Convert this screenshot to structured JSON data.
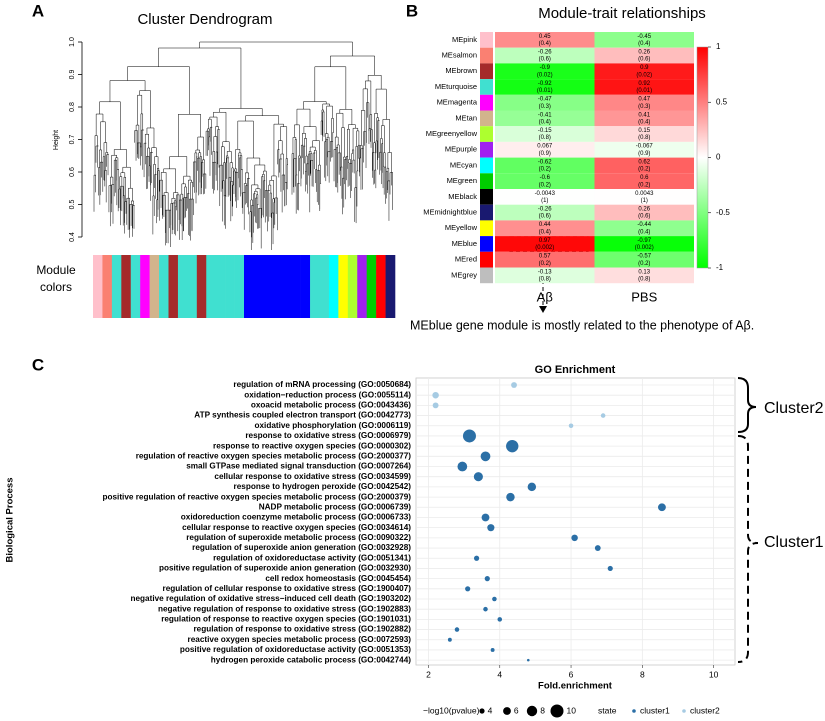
{
  "chart_data": [
    {
      "panel": "A",
      "type": "dendrogram",
      "title": "Cluster Dendrogram",
      "ylabel": "Height",
      "ylim": [
        0.4,
        1.0
      ],
      "yticks": [
        {
          "value": 1,
          "label": "1.0"
        },
        0.9,
        0.8,
        0.7,
        0.6,
        0.5,
        0.4
      ],
      "module_label": "Module colors",
      "module_colors": [
        "#ffc0cb",
        "#fa8072",
        "#40e0d0",
        "#a52a2a",
        "#40e0d0",
        "#ff00ff",
        "#d2b48c",
        "#40e0d0",
        "#a52a2a",
        "#40e0d0",
        "#40e0d0",
        "#a52a2a",
        "#40e0d0",
        "#40e0d0",
        "#40e0d0",
        "#40e0d0",
        "#0000ff",
        "#0000ff",
        "#0000ff",
        "#0000ff",
        "#0000ff",
        "#0000ff",
        "#0000ff",
        "#40e0d0",
        "#40e0d0",
        "#00ffff",
        "#ffff00",
        "#adff2f",
        "#a020f0",
        "#00cd00",
        "#ff0000",
        "#191970"
      ]
    },
    {
      "panel": "B",
      "type": "heatmap",
      "title": "Module-trait relationships",
      "categories": [
        "MEpink",
        "MEsalmon",
        "MEbrown",
        "MEturquoise",
        "MEmagenta",
        "MEtan",
        "MEgreenyellow",
        "MEpurple",
        "MEcyan",
        "MEgreen",
        "MEblack",
        "MEmidnightblue",
        "MEyellow",
        "MEblue",
        "MEred",
        "MEgrey"
      ],
      "row_colors": [
        "#ffc0cb",
        "#fa8072",
        "#a52a2a",
        "#40e0d0",
        "#ff00ff",
        "#d2b48c",
        "#adff2f",
        "#a020f0",
        "#00ffff",
        "#00cd00",
        "#000000",
        "#191970",
        "#ffff00",
        "#0000ff",
        "#ff0000",
        "#bebebe"
      ],
      "series": [
        {
          "name": "Aβ",
          "values": [
            0.45,
            -0.26,
            -0.9,
            -0.92,
            -0.47,
            -0.41,
            -0.15,
            0.067,
            -0.62,
            -0.6,
            -0.0043,
            -0.26,
            0.44,
            0.97,
            0.57,
            -0.13
          ],
          "pvalues": [
            0.4,
            0.6,
            0.02,
            0.01,
            0.3,
            0.4,
            0.8,
            0.9,
            0.2,
            0.2,
            1,
            0.6,
            0.4,
            0.002,
            0.2,
            0.8
          ],
          "pvalue_labels": [
            "(0.4)",
            "(0.6)",
            "(0.02)",
            "(0.01)",
            "(0.3)",
            "(0.4)",
            "(0.8)",
            "(0.9)",
            "(0.2)",
            "(0.2)",
            "(1)",
            "(0.6)",
            "(0.4)",
            "(0.002)",
            "(0.2)",
            "(0.8)"
          ]
        },
        {
          "name": "PBS",
          "values": [
            -0.45,
            0.26,
            0.9,
            0.92,
            0.47,
            0.41,
            0.15,
            -0.067,
            0.62,
            0.6,
            0.0043,
            0.26,
            -0.44,
            -0.97,
            -0.57,
            0.13
          ],
          "pvalues": [
            0.4,
            0.6,
            0.02,
            0.01,
            0.3,
            0.4,
            0.8,
            0.9,
            0.2,
            0.2,
            1,
            0.6,
            0.4,
            0.002,
            0.2,
            0.8
          ],
          "pvalue_labels": [
            "(0.4)",
            "(0.6)",
            "(0.02)",
            "(0.01)",
            "(0.3)",
            "(0.4)",
            "(0.8)",
            "(0.9)",
            "(0.2)",
            "(0.2)",
            "(1)",
            "(0.6)",
            "(0.4)",
            "(0.002)",
            "(0.2)",
            "(0.8)"
          ]
        }
      ],
      "colorbar": {
        "lim": [
          -1,
          1
        ],
        "ticks": [
          1,
          0.5,
          0,
          -0.5,
          -1
        ],
        "colors": [
          "#00ff00",
          "#ffffff",
          "#ff0000"
        ]
      },
      "annotation": "MEblue gene module is mostly related to the phenotype of Aβ."
    },
    {
      "panel": "C",
      "type": "bubble",
      "title": "GO Enrichment",
      "xlabel": "Fold.enrichment",
      "ylabel": "Biological Process",
      "xlim": [
        1.65,
        10.6
      ],
      "xticks": [
        2,
        4,
        6,
        8,
        10
      ],
      "grid": true,
      "series": [
        {
          "name": "cluster2",
          "color": "#a6cbe3",
          "categories": [
            "regulation of mRNA processing (GO:0050684)",
            "oxidation−reduction process (GO:0055114)",
            "oxoacid metabolic process (GO:0043436)",
            "ATP synthesis coupled electron transport (GO:0042773)",
            "oxidative phosphorylation (GO:0006119)"
          ],
          "values": [
            4.4,
            2.2,
            2.2,
            6.9,
            6.0
          ],
          "sizes": [
            4.5,
            5,
            4.5,
            3.5,
            3.5
          ]
        },
        {
          "name": "cluster1",
          "color": "#2b6fa6",
          "categories": [
            "response to oxidative stress (GO:0006979)",
            "response to reactive oxygen species (GO:0000302)",
            "regulation of reactive oxygen species metabolic process (GO:2000377)",
            "small GTPase mediated signal transduction (GO:0007264)",
            "cellular response to oxidative stress (GO:0034599)",
            "response to hydrogen peroxide (GO:0042542)",
            "positive regulation of reactive oxygen species metabolic process (GO:2000379)",
            "NADP metabolic process (GO:0006739)",
            "oxidoreduction coenzyme metabolic process (GO:0006733)",
            "cellular response to reactive oxygen species (GO:0034614)",
            "regulation of superoxide metabolic process (GO:0090322)",
            "regulation of superoxide anion generation (GO:0032928)",
            "regulation of oxidoreductase activity (GO:0051341)",
            "positive regulation of superoxide anion generation (GO:0032930)",
            "cell redox homeostasis (GO:0045454)",
            "regulation of cellular response to oxidative stress (GO:1900407)",
            "negative regulation of oxidative stress−induced cell death (GO:1903202)",
            "negative regulation of response to oxidative stress (GO:1902883)",
            "regulation of response to reactive oxygen species (GO:1901031)",
            "regulation of response to oxidative stress (GO:1902882)",
            "reactive oxygen species metabolic process (GO:0072593)",
            "positive regulation of oxidoreductase activity (GO:0051353)",
            "hydrogen peroxide catabolic process (GO:0042744)"
          ],
          "values": [
            3.15,
            4.35,
            3.6,
            2.95,
            3.4,
            4.9,
            4.3,
            8.55,
            3.6,
            3.75,
            6.1,
            6.75,
            3.35,
            7.1,
            3.65,
            3.1,
            3.85,
            3.6,
            4.0,
            2.8,
            2.6,
            3.8,
            4.8
          ],
          "sizes": [
            10,
            9.5,
            7.5,
            7.5,
            7,
            6.5,
            6.5,
            6,
            6,
            5.5,
            5,
            4.5,
            4,
            4,
            4,
            4,
            3.5,
            3.5,
            3.5,
            3.5,
            3,
            3,
            2
          ]
        }
      ],
      "size_legend": {
        "title": "−log10(pvalue)",
        "values": [
          4,
          6,
          8,
          10
        ]
      },
      "state_legend_title": "state",
      "annotations": [
        "Cluster2",
        "Cluster1"
      ]
    }
  ]
}
